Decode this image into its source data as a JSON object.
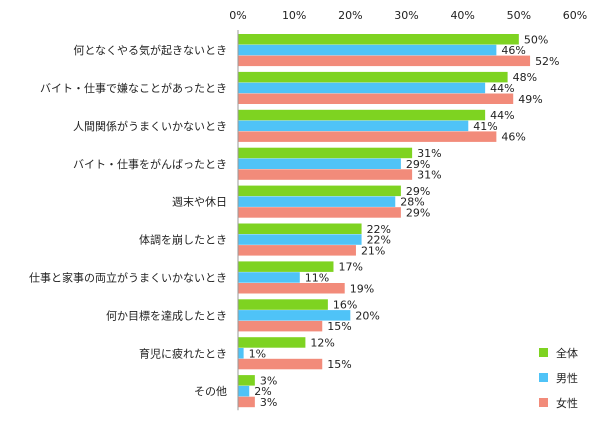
{
  "chart_data": {
    "type": "bar",
    "orientation": "horizontal",
    "categories": [
      "何となくやる気が起きないとき",
      "バイト・仕事で嫌なことがあったとき",
      "人間関係がうまくいかないとき",
      "バイト・仕事をがんばったとき",
      "週末や休日",
      "体調を崩したとき",
      "仕事と家事の両立がうまくいかないとき",
      "何か目標を達成したとき",
      "育児に疲れたとき",
      "その他"
    ],
    "series": [
      {
        "name": "全体",
        "color": "#7ED321",
        "values": [
          50,
          48,
          44,
          31,
          29,
          22,
          17,
          16,
          12,
          3
        ]
      },
      {
        "name": "男性",
        "color": "#4FC3F7",
        "values": [
          46,
          44,
          41,
          29,
          28,
          22,
          11,
          20,
          1,
          2
        ]
      },
      {
        "name": "女性",
        "color": "#F28B7A",
        "values": [
          52,
          49,
          46,
          31,
          29,
          21,
          19,
          15,
          15,
          3
        ]
      }
    ],
    "xlim": [
      0,
      60
    ],
    "ticks": [
      0,
      10,
      20,
      30,
      40,
      50,
      60
    ],
    "tick_suffix": "%",
    "value_suffix": "%",
    "grid": false,
    "legend_position": "bottom-right"
  }
}
